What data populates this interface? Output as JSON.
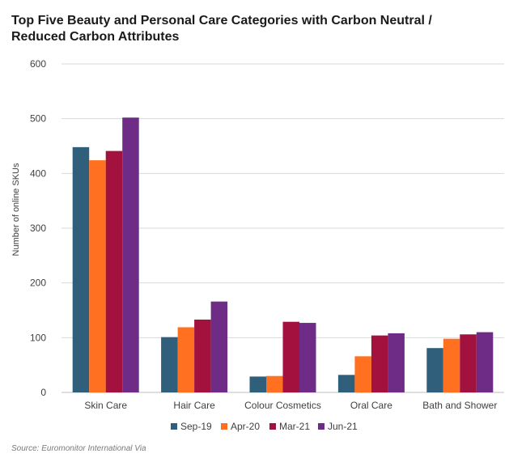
{
  "chart_data": {
    "type": "bar",
    "title": "Top Five Beauty and Personal Care Categories with Carbon Neutral / Reduced Carbon Attributes",
    "xlabel": "",
    "ylabel": "Number of online SKUs",
    "ylim": [
      0,
      600
    ],
    "yticks": [
      0,
      100,
      200,
      300,
      400,
      500,
      600
    ],
    "grid": true,
    "legend_position": "bottom",
    "categories": [
      "Skin Care",
      "Hair Care",
      "Colour Cosmetics",
      "Oral Care",
      "Bath and Shower"
    ],
    "series": [
      {
        "name": "Sep-19",
        "color": "#2f5f7a",
        "values": [
          448,
          101,
          29,
          32,
          81
        ]
      },
      {
        "name": "Apr-20",
        "color": "#ff7120",
        "values": [
          424,
          119,
          30,
          66,
          98
        ]
      },
      {
        "name": "Mar-21",
        "color": "#a3123e",
        "values": [
          441,
          133,
          129,
          104,
          106
        ]
      },
      {
        "name": "Jun-21",
        "color": "#6e2c86",
        "values": [
          502,
          166,
          127,
          108,
          110
        ]
      }
    ]
  },
  "source": "Source: Euromonitor International Via"
}
